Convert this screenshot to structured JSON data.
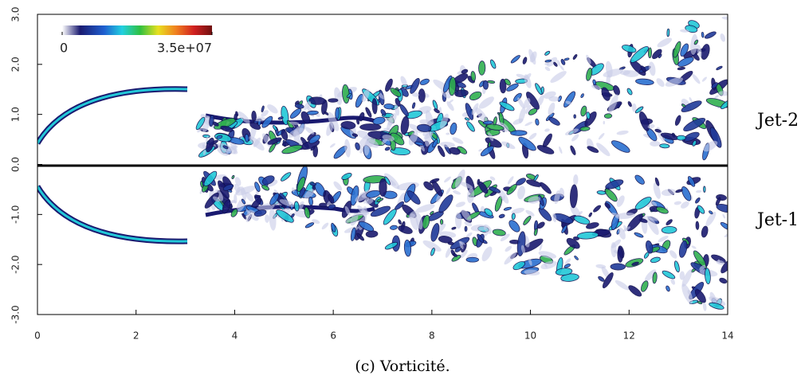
{
  "chart_data": {
    "type": "field",
    "caption": "(c) Vorticité.",
    "xlim": [
      0,
      14
    ],
    "xticks": [
      0,
      2,
      4,
      6,
      8,
      10,
      12,
      14
    ],
    "ylim": [
      -3,
      3
    ],
    "yticks": [
      {
        "value": -3,
        "label": "-3.0"
      },
      {
        "value": -2,
        "label": "-2.0"
      },
      {
        "value": -1,
        "label": "-1.0"
      },
      {
        "value": 0,
        "label": "0.0"
      },
      {
        "value": 1,
        "label": "1.0"
      },
      {
        "value": 2,
        "label": "2.0"
      },
      {
        "value": 3,
        "label": "3.0"
      }
    ],
    "colorbar": {
      "clim": [
        0,
        35000000
      ],
      "ticks": [
        0,
        {
          "value": 35000000,
          "label": "3.5e+07"
        }
      ]
    },
    "annotations": [
      "Jet-2",
      "Jet-1"
    ]
  }
}
